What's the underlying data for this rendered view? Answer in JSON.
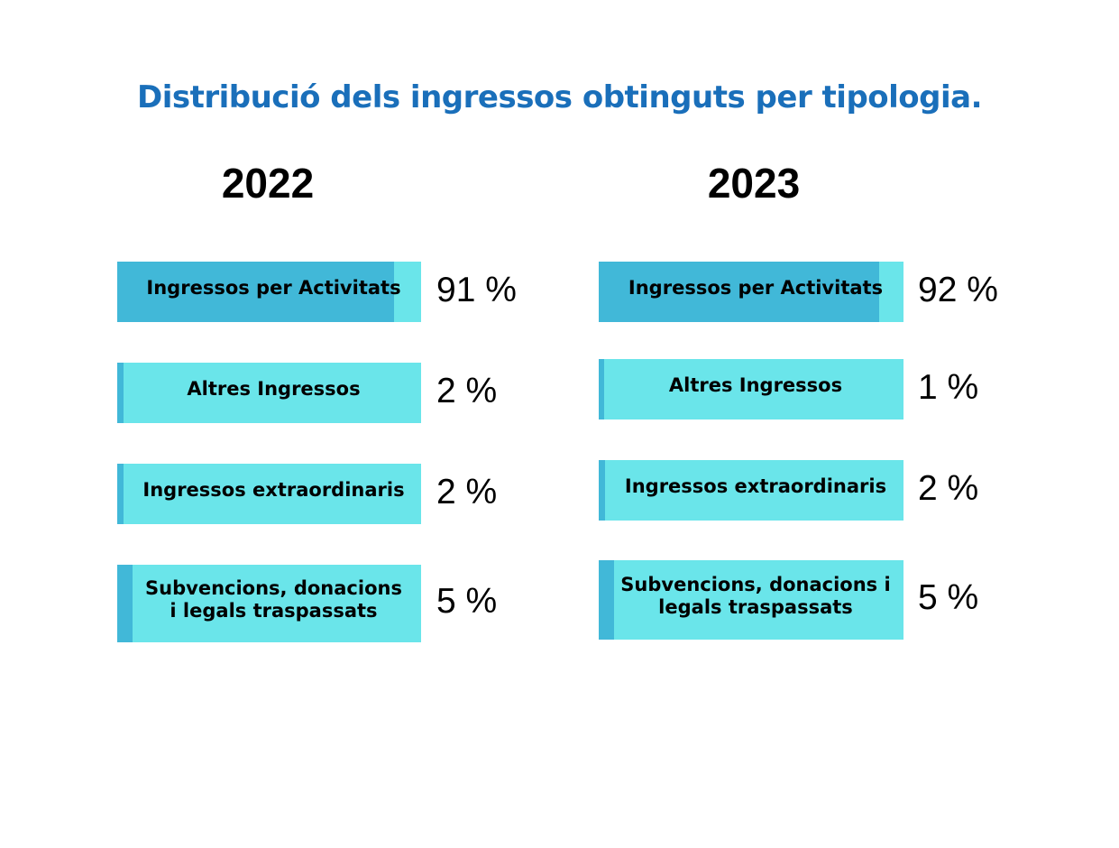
{
  "title": "Distribució dels ingressos obtinguts per tipologia.",
  "colors": {
    "title": "#1a6fba",
    "bar_dark": "#41b8d8",
    "bar_light": "#6ae5ea"
  },
  "chart_data": [
    {
      "type": "bar",
      "title": "2022",
      "categories": [
        "Ingressos per Activitats",
        "Altres Ingressos",
        "Ingressos extraordinaris",
        "Subvencions, donacions i legals traspassats"
      ],
      "values": [
        91,
        2,
        2,
        5
      ],
      "value_labels": [
        "91 %",
        "2 %",
        "2 %",
        "5 %"
      ],
      "unit": "%",
      "xlim": [
        0,
        100
      ]
    },
    {
      "type": "bar",
      "title": "2023",
      "categories": [
        "Ingressos per Activitats",
        "Altres Ingressos",
        "Ingressos extraordinaris",
        "Subvencions, donacions i legals traspassats"
      ],
      "values": [
        92,
        1,
        2,
        5
      ],
      "value_labels": [
        "92 %",
        "1 %",
        "2 %",
        "5 %"
      ],
      "unit": "%",
      "xlim": [
        0,
        100
      ]
    }
  ]
}
